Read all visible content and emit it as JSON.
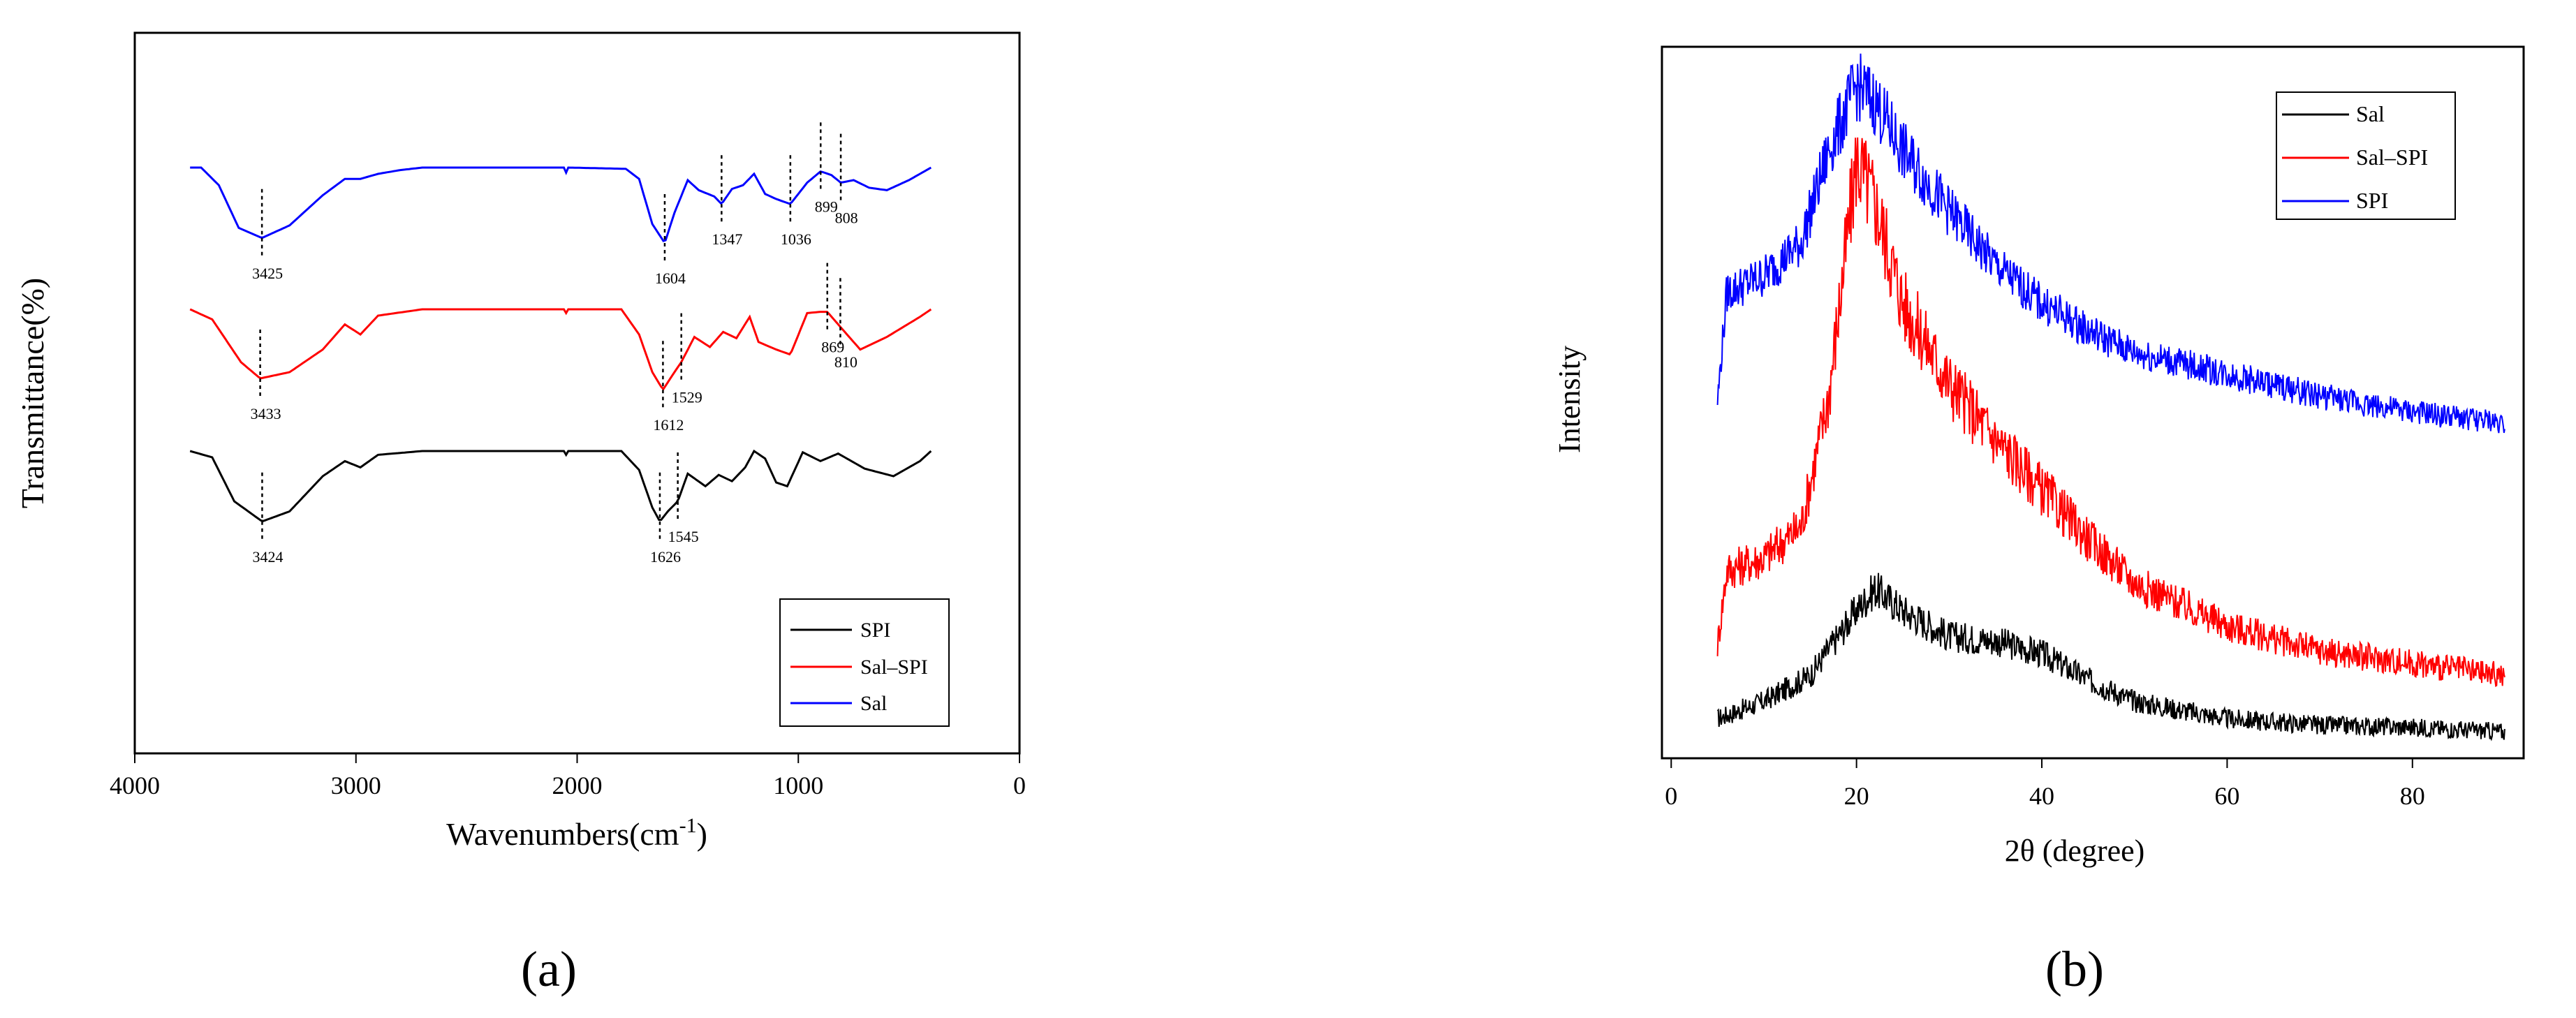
{
  "chart_data": [
    {
      "type": "line",
      "panel_label": "(a)",
      "xlabel": "Wavenumbers(cm",
      "xlabel_sup": "-1",
      "xlabel_tail": ")",
      "ylabel": "Transmittance(%)",
      "xlim": [
        4000,
        0
      ],
      "x_reversed": true,
      "y_ticks": false,
      "x_ticks": [
        4000,
        3000,
        2000,
        1000,
        0
      ],
      "x_tick_labels": [
        "4000",
        "3000",
        "2000",
        "1000",
        "0"
      ],
      "legend_position": "bottom-right",
      "series": [
        {
          "name": "SPI",
          "color": "#000000",
          "offset": 0,
          "points": [
            [
              3750,
              0.0
            ],
            [
              3650,
              0.5
            ],
            [
              3550,
              4.0
            ],
            [
              3424,
              5.6
            ],
            [
              3300,
              4.8
            ],
            [
              3150,
              2.0
            ],
            [
              3050,
              0.8
            ],
            [
              2980,
              1.3
            ],
            [
              2900,
              0.3
            ],
            [
              2700,
              0.0
            ],
            [
              2060,
              0.0
            ],
            [
              2050,
              0.3
            ],
            [
              2040,
              0.0
            ],
            [
              1800,
              0.0
            ],
            [
              1720,
              1.5
            ],
            [
              1660,
              4.5
            ],
            [
              1626,
              5.6
            ],
            [
              1590,
              4.8
            ],
            [
              1545,
              4.0
            ],
            [
              1500,
              1.8
            ],
            [
              1420,
              2.8
            ],
            [
              1360,
              1.9
            ],
            [
              1300,
              2.4
            ],
            [
              1240,
              1.3
            ],
            [
              1200,
              0.0
            ],
            [
              1150,
              0.6
            ],
            [
              1100,
              2.5
            ],
            [
              1050,
              2.8
            ],
            [
              980,
              0.1
            ],
            [
              900,
              0.8
            ],
            [
              820,
              0.2
            ],
            [
              700,
              1.4
            ],
            [
              570,
              2.0
            ],
            [
              450,
              0.8
            ],
            [
              400,
              0.0
            ]
          ]
        },
        {
          "name": "Sal–SPI",
          "color": "#ff0000",
          "offset": 1,
          "points": [
            [
              3750,
              0.0
            ],
            [
              3650,
              0.8
            ],
            [
              3520,
              4.2
            ],
            [
              3433,
              5.5
            ],
            [
              3300,
              5.0
            ],
            [
              3150,
              3.2
            ],
            [
              3050,
              1.2
            ],
            [
              2980,
              2.0
            ],
            [
              2900,
              0.5
            ],
            [
              2700,
              0.0
            ],
            [
              2060,
              0.0
            ],
            [
              2050,
              0.3
            ],
            [
              2040,
              0.0
            ],
            [
              1800,
              0.0
            ],
            [
              1720,
              2.0
            ],
            [
              1660,
              5.0
            ],
            [
              1612,
              6.4
            ],
            [
              1560,
              5.0
            ],
            [
              1529,
              4.2
            ],
            [
              1470,
              2.2
            ],
            [
              1400,
              3.0
            ],
            [
              1340,
              1.8
            ],
            [
              1280,
              2.3
            ],
            [
              1220,
              0.6
            ],
            [
              1180,
              2.6
            ],
            [
              1100,
              3.2
            ],
            [
              1036,
              3.6
            ],
            [
              960,
              0.3
            ],
            [
              900,
              0.2
            ],
            [
              869,
              0.2
            ],
            [
              810,
              1.4
            ],
            [
              720,
              3.2
            ],
            [
              600,
              2.2
            ],
            [
              450,
              0.6
            ],
            [
              400,
              0.0
            ]
          ]
        },
        {
          "name": "Sal",
          "color": "#0000ff",
          "offset": 2,
          "points": [
            [
              3700,
              0.0
            ],
            [
              3620,
              1.4
            ],
            [
              3530,
              4.8
            ],
            [
              3425,
              5.6
            ],
            [
              3300,
              4.6
            ],
            [
              3150,
              2.2
            ],
            [
              3050,
              0.9
            ],
            [
              2980,
              0.9
            ],
            [
              2900,
              0.5
            ],
            [
              2800,
              0.2
            ],
            [
              2700,
              0.0
            ],
            [
              2060,
              0.0
            ],
            [
              2050,
              0.4
            ],
            [
              2040,
              0.0
            ],
            [
              1780,
              0.1
            ],
            [
              1720,
              0.9
            ],
            [
              1660,
              4.5
            ],
            [
              1604,
              6.0
            ],
            [
              1560,
              3.6
            ],
            [
              1500,
              1.0
            ],
            [
              1450,
              1.8
            ],
            [
              1380,
              2.3
            ],
            [
              1347,
              2.9
            ],
            [
              1300,
              1.7
            ],
            [
              1250,
              1.4
            ],
            [
              1200,
              0.5
            ],
            [
              1150,
              2.1
            ],
            [
              1100,
              2.5
            ],
            [
              1036,
              2.9
            ],
            [
              960,
              1.2
            ],
            [
              899,
              0.3
            ],
            [
              850,
              0.6
            ],
            [
              808,
              1.2
            ],
            [
              750,
              1.0
            ],
            [
              680,
              1.6
            ],
            [
              600,
              1.8
            ],
            [
              500,
              1.0
            ],
            [
              400,
              0.0
            ]
          ]
        }
      ],
      "annotations": [
        {
          "x": 3425,
          "label": "3425",
          "series": "Sal"
        },
        {
          "x": 1604,
          "label": "1604",
          "series": "Sal"
        },
        {
          "x": 1347,
          "label": "1347",
          "series": "Sal"
        },
        {
          "x": 1036,
          "label": "1036",
          "series": "Sal"
        },
        {
          "x": 899,
          "label": "899",
          "series": "Sal"
        },
        {
          "x": 808,
          "label": "808",
          "series": "Sal"
        },
        {
          "x": 3433,
          "label": "3433",
          "series": "Sal–SPI"
        },
        {
          "x": 1612,
          "label": "1612",
          "series": "Sal–SPI"
        },
        {
          "x": 1529,
          "label": "1529",
          "series": "Sal–SPI"
        },
        {
          "x": 869,
          "label": "869",
          "series": "Sal–SPI"
        },
        {
          "x": 810,
          "label": "810",
          "series": "Sal–SPI"
        },
        {
          "x": 3424,
          "label": "3424",
          "series": "SPI"
        },
        {
          "x": 1626,
          "label": "1626",
          "series": "SPI"
        },
        {
          "x": 1545,
          "label": "1545",
          "series": "SPI"
        }
      ]
    },
    {
      "type": "line",
      "panel_label": "(b)",
      "xlabel": "2θ (degree)",
      "ylabel": "Intensity",
      "xlim": [
        -1,
        92
      ],
      "x_ticks": [
        0,
        20,
        40,
        60,
        80
      ],
      "x_tick_labels": [
        "0",
        "20",
        "40",
        "60",
        "80"
      ],
      "y_ticks": false,
      "legend_position": "top-right",
      "series": [
        {
          "name": "Sal",
          "color": "#000000",
          "offset": 0,
          "profile": [
            [
              5,
              0.3
            ],
            [
              10,
              0.7
            ],
            [
              15,
              1.3
            ],
            [
              20,
              2.8
            ],
            [
              22,
              3.3
            ],
            [
              25,
              2.8
            ],
            [
              30,
              2.2
            ],
            [
              35,
              2.1
            ],
            [
              40,
              1.8
            ],
            [
              45,
              1.2
            ],
            [
              50,
              0.7
            ],
            [
              60,
              0.3
            ],
            [
              70,
              0.15
            ],
            [
              80,
              0.1
            ],
            [
              90,
              0.0
            ]
          ]
        },
        {
          "name": "Sal–SPI",
          "color": "#ff0000",
          "offset": 1,
          "profile": [
            [
              5,
              0.5
            ],
            [
              6,
              1.7
            ],
            [
              10,
              1.9
            ],
            [
              14,
              2.4
            ],
            [
              17,
              4.5
            ],
            [
              20,
              8.3
            ],
            [
              22,
              7.6
            ],
            [
              25,
              6.0
            ],
            [
              30,
              4.7
            ],
            [
              35,
              3.8
            ],
            [
              40,
              3.0
            ],
            [
              45,
              2.2
            ],
            [
              50,
              1.5
            ],
            [
              60,
              0.8
            ],
            [
              70,
              0.4
            ],
            [
              80,
              0.2
            ],
            [
              90,
              0.0
            ]
          ]
        },
        {
          "name": "SPI",
          "color": "#0000ff",
          "offset": 2,
          "profile": [
            [
              5,
              0.4
            ],
            [
              6,
              2.4
            ],
            [
              10,
              2.7
            ],
            [
              14,
              3.3
            ],
            [
              17,
              5.0
            ],
            [
              20,
              6.2
            ],
            [
              22,
              5.9
            ],
            [
              25,
              5.0
            ],
            [
              30,
              3.9
            ],
            [
              35,
              2.9
            ],
            [
              40,
              2.2
            ],
            [
              45,
              1.7
            ],
            [
              50,
              1.3
            ],
            [
              60,
              0.9
            ],
            [
              70,
              0.5
            ],
            [
              80,
              0.2
            ],
            [
              90,
              0.0
            ]
          ]
        }
      ]
    }
  ]
}
